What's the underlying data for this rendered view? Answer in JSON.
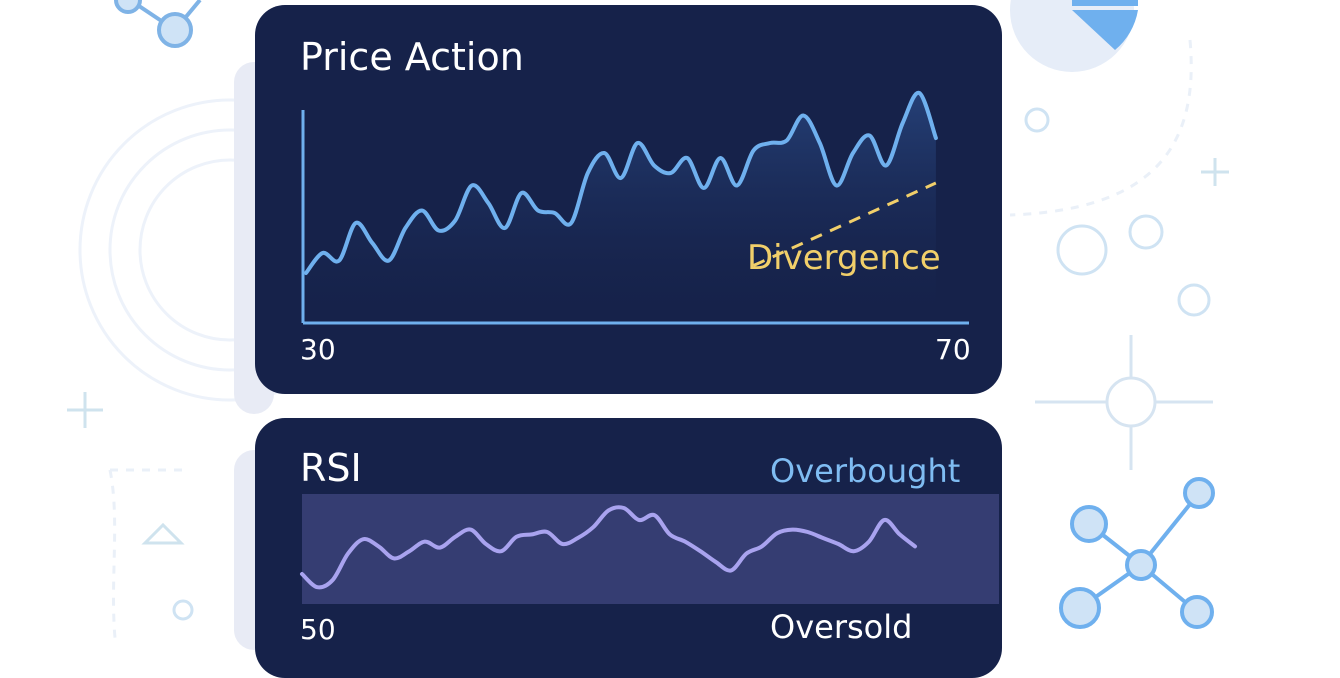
{
  "colors": {
    "card_bg": "#16224a",
    "price_line": "#6fb0ee",
    "rsi_line": "#a9a3ef",
    "rsi_band": "#353d72",
    "divergence": "#f1cf6a",
    "overbought": "#7fbcf2",
    "decor": "#9cc6ec"
  },
  "icons": [
    "network-node-icon",
    "pie-chart-icon",
    "plus-icon",
    "triangle-icon",
    "crosshair-icon",
    "circle-icon"
  ],
  "chart_data": [
    {
      "type": "area",
      "title": "Price Action",
      "xlim": [
        30,
        70
      ],
      "x_tick_labels": [
        "30",
        "70"
      ],
      "grid": false,
      "series": [
        {
          "x": [
            30,
            31,
            32,
            33,
            34,
            35,
            36,
            37,
            38,
            39,
            40,
            41,
            42,
            43,
            44,
            45,
            46,
            47,
            48,
            49,
            50,
            51,
            52,
            53,
            54,
            55,
            56,
            57,
            58,
            59,
            60,
            61,
            62,
            63,
            64,
            65,
            66,
            67,
            68
          ],
          "values": [
            20,
            28,
            25,
            40,
            32,
            25,
            38,
            45,
            37,
            41,
            55,
            48,
            38,
            52,
            45,
            44,
            40,
            60,
            68,
            58,
            72,
            63,
            60,
            66,
            54,
            66,
            55,
            69,
            72,
            73,
            83,
            72,
            55,
            68,
            75,
            63,
            80,
            92,
            74
          ]
        }
      ],
      "annotations": [
        {
          "text": "Divergence",
          "type": "dashed-trendline",
          "x": [
            57,
            68
          ],
          "y": [
            23,
            56
          ]
        }
      ]
    },
    {
      "type": "line",
      "title": "RSI",
      "x_tick_labels": [
        "50"
      ],
      "band_labels": [
        "Overbought",
        "Oversold"
      ],
      "grid": false,
      "series": [
        {
          "x": [
            0,
            1,
            2,
            3,
            4,
            5,
            6,
            7,
            8,
            9,
            10,
            11,
            12,
            13,
            14,
            15,
            16,
            17,
            18,
            19,
            20,
            21,
            22,
            23,
            24,
            25,
            26,
            27,
            28,
            29,
            30,
            31,
            32,
            33,
            34,
            35,
            36,
            37,
            38,
            39,
            40
          ],
          "values": [
            25,
            14,
            20,
            42,
            54,
            48,
            38,
            44,
            52,
            47,
            56,
            62,
            50,
            44,
            56,
            58,
            60,
            50,
            55,
            64,
            78,
            80,
            70,
            74,
            58,
            52,
            44,
            35,
            28,
            42,
            48,
            59,
            62,
            60,
            55,
            50,
            44,
            52,
            70,
            58,
            48
          ]
        }
      ]
    }
  ],
  "labels": {
    "price_title": "Price Action",
    "price_x_start": "30",
    "price_x_end": "70",
    "divergence": "Divergence",
    "rsi_title": "RSI",
    "rsi_x_start": "50",
    "overbought": "Overbought",
    "oversold": "Oversold"
  }
}
